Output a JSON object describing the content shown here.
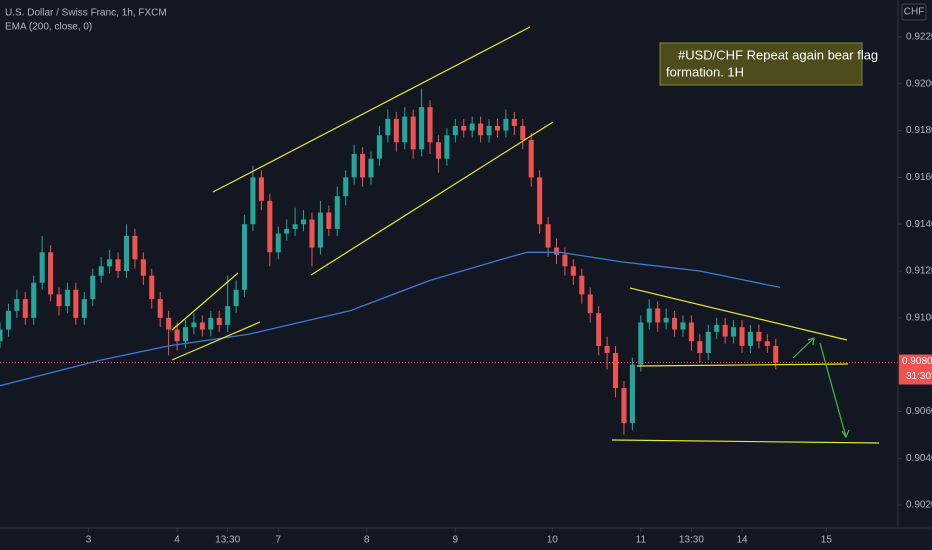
{
  "chart_data": {
    "type": "candlestick",
    "title": "U.S. Dollar / Swiss Franc, 1h, FXCM",
    "indicator_label": "EMA (200, close, 0)",
    "currency_button": "CHF",
    "annotation": [
      "#USD/CHF Repeat again bear flag",
      "formation.    1H"
    ],
    "up_color": "#26a69a",
    "down_color": "#ef5350",
    "x": [
      0,
      2,
      4,
      6,
      8,
      10,
      12,
      14,
      16,
      18,
      20,
      22,
      24,
      26,
      28,
      30,
      32,
      34,
      36,
      38,
      40,
      42,
      44,
      46,
      48,
      50,
      52,
      54,
      56,
      58,
      60,
      62,
      64,
      66,
      68,
      70,
      72,
      74,
      76,
      78,
      80,
      82,
      84,
      86,
      88,
      90,
      92,
      94,
      96,
      98,
      100,
      102,
      104,
      106,
      108,
      110,
      112,
      114,
      116,
      118,
      120,
      122,
      124,
      126,
      128,
      130,
      132,
      134,
      136,
      138,
      140,
      142,
      144,
      146,
      148,
      150,
      152,
      154,
      156,
      158,
      160,
      162,
      164,
      166,
      168,
      170,
      172,
      174,
      176,
      178,
      180,
      182,
      184
    ],
    "open": [
      0.909,
      0.9095,
      0.9103,
      0.9108,
      0.91,
      0.9115,
      0.9128,
      0.911,
      0.9105,
      0.9112,
      0.91,
      0.9108,
      0.9118,
      0.9122,
      0.9125,
      0.912,
      0.9135,
      0.9125,
      0.9118,
      0.9108,
      0.91,
      0.9095,
      0.909,
      0.9096,
      0.9098,
      0.9095,
      0.91,
      0.9097,
      0.9105,
      0.9112,
      0.914,
      0.916,
      0.915,
      0.9128,
      0.9136,
      0.9138,
      0.914,
      0.9142,
      0.913,
      0.9145,
      0.9138,
      0.9152,
      0.916,
      0.917,
      0.916,
      0.9168,
      0.9178,
      0.9185,
      0.9175,
      0.9186,
      0.9172,
      0.919,
      0.9175,
      0.9168,
      0.9178,
      0.9182,
      0.918,
      0.9183,
      0.9178,
      0.9182,
      0.918,
      0.9185,
      0.9182,
      0.9176,
      0.916,
      0.914,
      0.913,
      0.9127,
      0.9122,
      0.9118,
      0.911,
      0.9102,
      0.9088,
      0.9085,
      0.907,
      0.9055,
      0.908,
      0.9098,
      0.9104,
      0.9098,
      0.91,
      0.9095,
      0.9098,
      0.909,
      0.9085,
      0.9094,
      0.9097,
      0.9092,
      0.9096,
      0.9088,
      0.9094,
      0.909,
      0.9088
    ],
    "high": [
      0.9098,
      0.9106,
      0.9112,
      0.9111,
      0.9118,
      0.9135,
      0.9131,
      0.9113,
      0.9115,
      0.9115,
      0.9111,
      0.9121,
      0.9126,
      0.9129,
      0.9128,
      0.914,
      0.9138,
      0.9128,
      0.9121,
      0.9111,
      0.9103,
      0.9098,
      0.9099,
      0.9102,
      0.9101,
      0.9103,
      0.9103,
      0.9118,
      0.9116,
      0.9144,
      0.9165,
      0.9163,
      0.9153,
      0.9139,
      0.9142,
      0.9147,
      0.9146,
      0.9145,
      0.915,
      0.9148,
      0.9156,
      0.9163,
      0.9174,
      0.9173,
      0.9171,
      0.9182,
      0.9189,
      0.9188,
      0.919,
      0.9189,
      0.9198,
      0.9193,
      0.9178,
      0.9181,
      0.9185,
      0.9185,
      0.9186,
      0.9186,
      0.9185,
      0.9185,
      0.9189,
      0.9188,
      0.9185,
      0.9179,
      0.9163,
      0.9143,
      0.9134,
      0.913,
      0.9125,
      0.9121,
      0.9113,
      0.9105,
      0.9092,
      0.9088,
      0.9073,
      0.9083,
      0.9101,
      0.9108,
      0.9107,
      0.9104,
      0.9103,
      0.9101,
      0.9101,
      0.9093,
      0.9097,
      0.91,
      0.91,
      0.9099,
      0.9099,
      0.9097,
      0.9097,
      0.9093,
      0.9091
    ],
    "low": [
      0.9087,
      0.9092,
      0.91,
      0.9097,
      0.9097,
      0.9112,
      0.9107,
      0.9101,
      0.9102,
      0.9097,
      0.9097,
      0.9105,
      0.9115,
      0.9119,
      0.9117,
      0.9117,
      0.9121,
      0.9114,
      0.9104,
      0.9096,
      0.9084,
      0.9086,
      0.9087,
      0.9093,
      0.9092,
      0.9092,
      0.9094,
      0.9094,
      0.9102,
      0.9109,
      0.9137,
      0.9146,
      0.9122,
      0.9125,
      0.9133,
      0.9135,
      0.9137,
      0.9122,
      0.9127,
      0.9135,
      0.9135,
      0.9148,
      0.9157,
      0.9156,
      0.9157,
      0.9165,
      0.9175,
      0.9171,
      0.9172,
      0.9168,
      0.9169,
      0.917,
      0.9162,
      0.9165,
      0.9175,
      0.9177,
      0.9177,
      0.9175,
      0.9175,
      0.9177,
      0.9177,
      0.9178,
      0.9172,
      0.9156,
      0.9136,
      0.9126,
      0.9123,
      0.9118,
      0.9114,
      0.9106,
      0.9098,
      0.9084,
      0.9078,
      0.9066,
      0.905,
      0.9052,
      0.9077,
      0.9095,
      0.9094,
      0.9095,
      0.9092,
      0.9092,
      0.9086,
      0.9081,
      0.9082,
      0.9091,
      0.9089,
      0.9089,
      0.9085,
      0.9085,
      0.9087,
      0.9085,
      0.9078
    ],
    "close": [
      0.9095,
      0.9103,
      0.9108,
      0.91,
      0.9115,
      0.9128,
      0.911,
      0.9105,
      0.9112,
      0.91,
      0.9108,
      0.9118,
      0.9122,
      0.9125,
      0.912,
      0.9135,
      0.9125,
      0.9118,
      0.9108,
      0.91,
      0.9095,
      0.909,
      0.9096,
      0.9098,
      0.9095,
      0.91,
      0.9097,
      0.9105,
      0.9112,
      0.914,
      0.916,
      0.915,
      0.9128,
      0.9136,
      0.9138,
      0.914,
      0.9142,
      0.913,
      0.9145,
      0.9138,
      0.9152,
      0.916,
      0.917,
      0.916,
      0.9168,
      0.9178,
      0.9185,
      0.9175,
      0.9186,
      0.9172,
      0.919,
      0.9175,
      0.9168,
      0.9178,
      0.9182,
      0.918,
      0.9183,
      0.9178,
      0.9182,
      0.918,
      0.9185,
      0.9182,
      0.9176,
      0.916,
      0.914,
      0.913,
      0.9127,
      0.9122,
      0.9118,
      0.911,
      0.9102,
      0.9088,
      0.9085,
      0.907,
      0.9055,
      0.908,
      0.9098,
      0.9104,
      0.9098,
      0.91,
      0.9095,
      0.9098,
      0.909,
      0.9085,
      0.9094,
      0.9097,
      0.9092,
      0.9096,
      0.9088,
      0.9094,
      0.909,
      0.9088,
      0.90809
    ],
    "ema": {
      "name": "EMA",
      "color": "#3a7bd5",
      "x": [
        0,
        24,
        40,
        59,
        83,
        102,
        119,
        125,
        133,
        147,
        166,
        185
      ],
      "values": [
        0.9071,
        0.9082,
        0.9088,
        0.9093,
        0.9103,
        0.9116,
        0.9125,
        0.9128,
        0.9128,
        0.9124,
        0.912,
        0.9113
      ]
    },
    "last_price": 0.90809,
    "last_price_label": "0.90809",
    "countdown": "31:30",
    "xlim": [
      0,
      213
    ],
    "ylim": [
      0.90102,
      0.92358
    ],
    "xticks": [
      {
        "value": 21,
        "label": "3"
      },
      {
        "value": 42,
        "label": "4"
      },
      {
        "value": 54,
        "label": "13:30"
      },
      {
        "value": 66,
        "label": "7"
      },
      {
        "value": 87,
        "label": "8"
      },
      {
        "value": 108,
        "label": "9"
      },
      {
        "value": 131,
        "label": "10"
      },
      {
        "value": 152,
        "label": "11"
      },
      {
        "value": 164,
        "label": "13:30"
      },
      {
        "value": 176,
        "label": "14"
      },
      {
        "value": 196,
        "label": "15"
      }
    ],
    "yticks": [
      {
        "value": 0.922,
        "label": "0.92200"
      },
      {
        "value": 0.92,
        "label": "0.92000"
      },
      {
        "value": 0.918,
        "label": "0.91800"
      },
      {
        "value": 0.916,
        "label": "0.91600"
      },
      {
        "value": 0.914,
        "label": "0.91400"
      },
      {
        "value": 0.912,
        "label": "0.91200"
      },
      {
        "value": 0.91,
        "label": "0.91000"
      },
      {
        "value": 0.906,
        "label": "0.90600"
      },
      {
        "value": 0.904,
        "label": "0.90400"
      },
      {
        "value": 0.902,
        "label": "0.90200"
      }
    ]
  }
}
